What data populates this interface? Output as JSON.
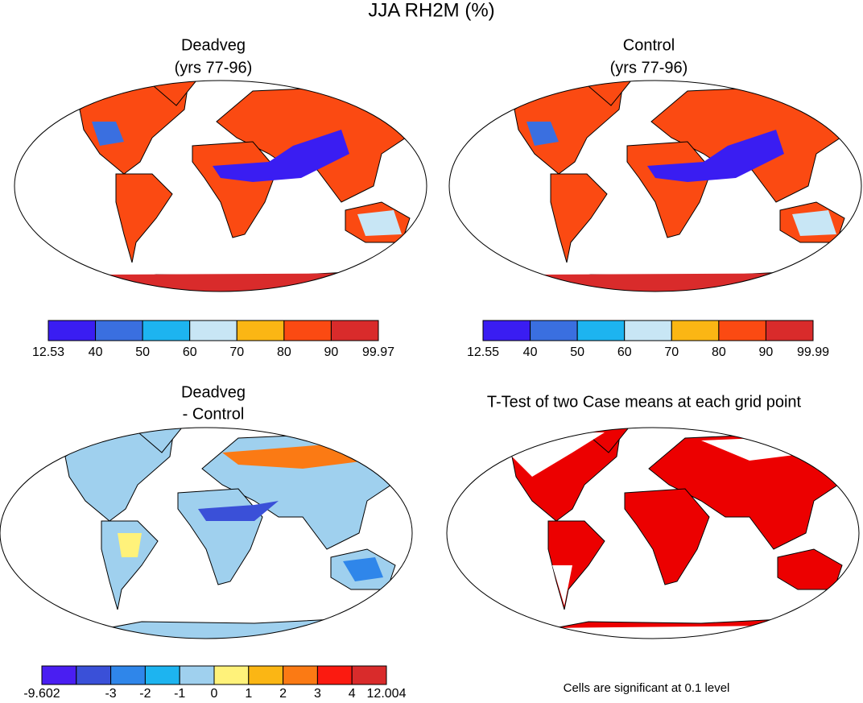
{
  "title": "JJA RH2M (%)",
  "panels": [
    {
      "title_lines": [
        "Deadveg",
        "(yrs 77-96)"
      ],
      "colorbar": {
        "colors": [
          "#3a1df2",
          "#3a6fe0",
          "#1db4f0",
          "#c8e6f5",
          "#fbb614",
          "#fb4a12",
          "#d92b2b"
        ],
        "labels": [
          12.53,
          40,
          50,
          60,
          70,
          80,
          90,
          99.97
        ]
      }
    },
    {
      "title_lines": [
        "Control",
        "(yrs 77-96)"
      ],
      "colorbar": {
        "colors": [
          "#3a1df2",
          "#3a6fe0",
          "#1db4f0",
          "#c8e6f5",
          "#fbb614",
          "#fb4a12",
          "#d92b2b"
        ],
        "labels": [
          12.55,
          40,
          50,
          60,
          70,
          80,
          90,
          99.99
        ]
      }
    },
    {
      "title_lines": [
        "Deadveg",
        "- Control"
      ],
      "colorbar": {
        "colors": [
          "#4a1ef2",
          "#3a50d8",
          "#2f86ea",
          "#1db4f0",
          "#9fd0ee",
          "#fff27a",
          "#fbb614",
          "#fb7a14",
          "#fb1a10",
          "#d92b2b"
        ],
        "labels": [
          -9.602,
          null,
          -3,
          -2,
          -1,
          0,
          1,
          2,
          3,
          4,
          12.004
        ]
      }
    },
    {
      "title_lines": [
        "T-Test of two Case means at each grid point"
      ],
      "note": "Cells are significant at 0.1 level"
    }
  ]
}
